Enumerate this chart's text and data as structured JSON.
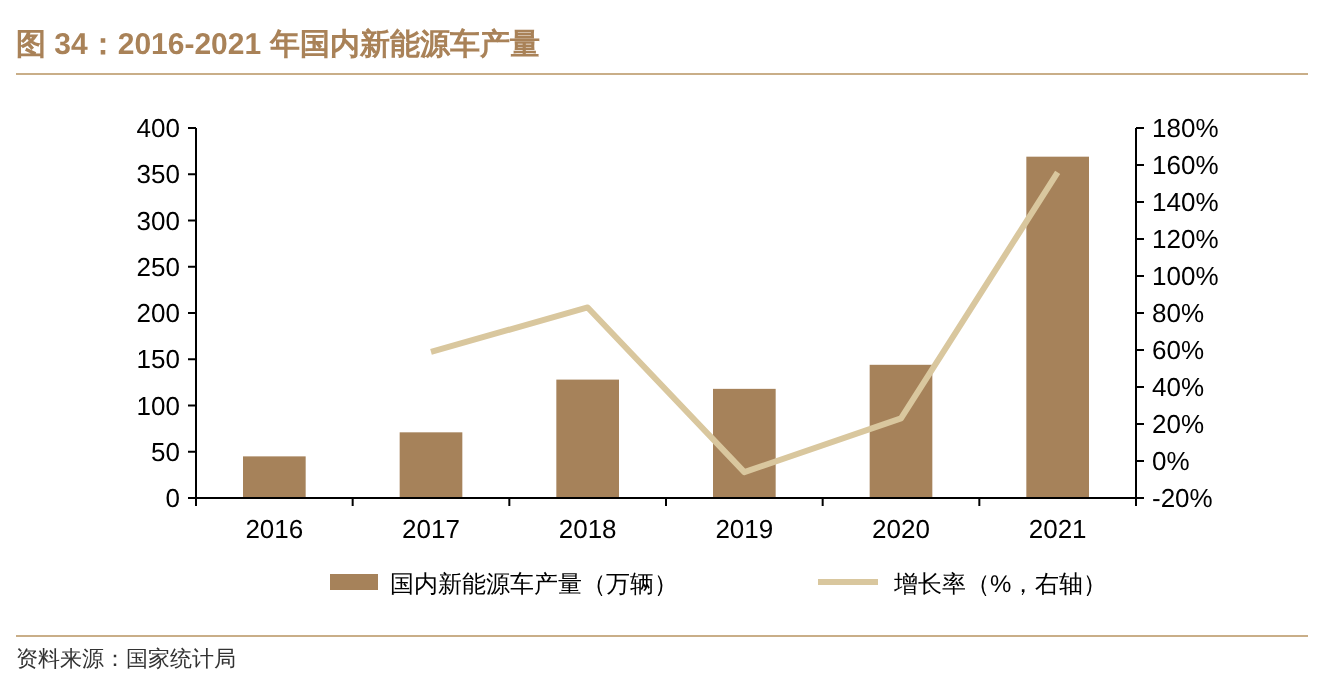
{
  "chart_data": {
    "type": "bar",
    "title": "图 34：2016-2021 年国内新能源车产量",
    "categories": [
      "2016",
      "2017",
      "2018",
      "2019",
      "2020",
      "2021"
    ],
    "series": [
      {
        "name": "国内新能源车产量（万辆）",
        "color": "#a6825a",
        "values": [
          45,
          71,
          128,
          118,
          144,
          369
        ]
      },
      {
        "name": "增长率（%，右轴）",
        "type": "line",
        "axis": "y2",
        "color": "#d9c79e",
        "values": [
          null,
          59,
          83,
          -6,
          23,
          156
        ]
      }
    ],
    "ylim": [
      0,
      400
    ],
    "yticks": [
      0,
      50,
      100,
      150,
      200,
      250,
      300,
      350,
      400
    ],
    "y2lim": [
      -20,
      180
    ],
    "y2ticks": [
      {
        "value": -20,
        "label": "-20%"
      },
      {
        "value": 0,
        "label": "0%"
      },
      {
        "value": 20,
        "label": "20%"
      },
      {
        "value": 40,
        "label": "40%"
      },
      {
        "value": 60,
        "label": "60%"
      },
      {
        "value": 80,
        "label": "80%"
      },
      {
        "value": 100,
        "label": "100%"
      },
      {
        "value": 120,
        "label": "120%"
      },
      {
        "value": 140,
        "label": "140%"
      },
      {
        "value": 160,
        "label": "160%"
      },
      {
        "value": 180,
        "label": "180%"
      }
    ],
    "legend": "bottom",
    "grid": false,
    "annotations": [
      "资料来源：国家统计局"
    ]
  }
}
